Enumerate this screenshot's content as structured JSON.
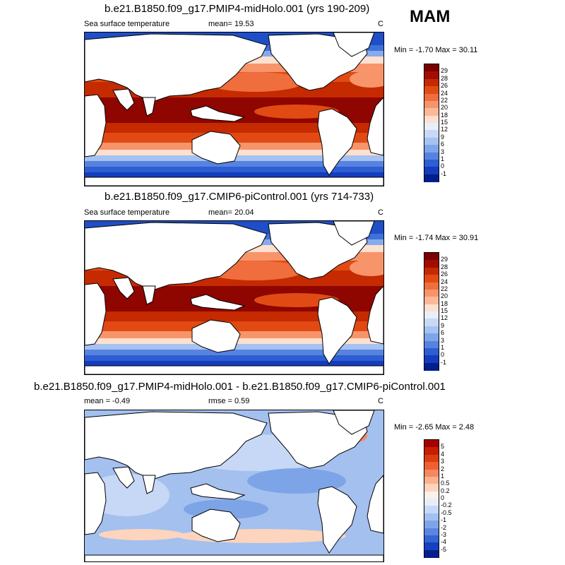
{
  "season": "MAM",
  "panels": [
    {
      "title": "b.e21.B1850.f09_g17.PMIP4-midHolo.001 (yrs 190-209)",
      "left_label": "Sea surface temperature",
      "center_label": "mean=  19.53",
      "units": "C",
      "minmax": "Min =  -1.70 Max =  30.11",
      "kind": "abs",
      "colorbar": {
        "labels": [
          "29",
          "28",
          "26",
          "24",
          "22",
          "20",
          "18",
          "15",
          "12",
          "9",
          "6",
          "3",
          "1",
          "0",
          "-1"
        ],
        "colors": [
          "#7a0000",
          "#a10e00",
          "#c52a00",
          "#e14b13",
          "#f06d3d",
          "#f8946a",
          "#fbb99a",
          "#fde0cf",
          "#e8eefb",
          "#c8d9f6",
          "#a5c2f0",
          "#7ea5e9",
          "#5783e0",
          "#2e5ed2",
          "#143cbe",
          "#001e8c"
        ]
      }
    },
    {
      "title": "b.e21.B1850.f09_g17.CMIP6-piControl.001 (yrs 714-733)",
      "left_label": "Sea surface temperature",
      "center_label": "mean=  20.04",
      "units": "C",
      "minmax": "Min =  -1.74 Max =  30.91",
      "kind": "abs",
      "colorbar": {
        "labels": [
          "29",
          "28",
          "26",
          "24",
          "22",
          "20",
          "18",
          "15",
          "12",
          "9",
          "6",
          "3",
          "1",
          "0",
          "-1"
        ],
        "colors": [
          "#7a0000",
          "#a10e00",
          "#c52a00",
          "#e14b13",
          "#f06d3d",
          "#f8946a",
          "#fbb99a",
          "#fde0cf",
          "#e8eefb",
          "#c8d9f6",
          "#a5c2f0",
          "#7ea5e9",
          "#5783e0",
          "#2e5ed2",
          "#143cbe",
          "#001e8c"
        ]
      }
    },
    {
      "title": "b.e21.B1850.f09_g17.PMIP4-midHolo.001 - b.e21.B1850.f09_g17.CMIP6-piControl.001",
      "left_label": "mean =  -0.49",
      "center_label": "rmse =   0.59",
      "units": "C",
      "minmax": "Min =  -2.65 Max =   2.48",
      "kind": "diff",
      "colorbar": {
        "labels": [
          "5",
          "4",
          "3",
          "2",
          "1",
          "0.5",
          "0.2",
          "0",
          "-0.2",
          "-0.5",
          "-1",
          "-2",
          "-3",
          "-4",
          "-5"
        ],
        "colors": [
          "#a50000",
          "#c51e00",
          "#dc3c10",
          "#ee6034",
          "#f6885e",
          "#fbb08e",
          "#fdd4bd",
          "#fdf0e8",
          "#e6eefb",
          "#c6d8f6",
          "#a3c0ef",
          "#7ea4e8",
          "#5a86e0",
          "#3564d4",
          "#1740c0",
          "#001e8c"
        ]
      }
    }
  ]
}
